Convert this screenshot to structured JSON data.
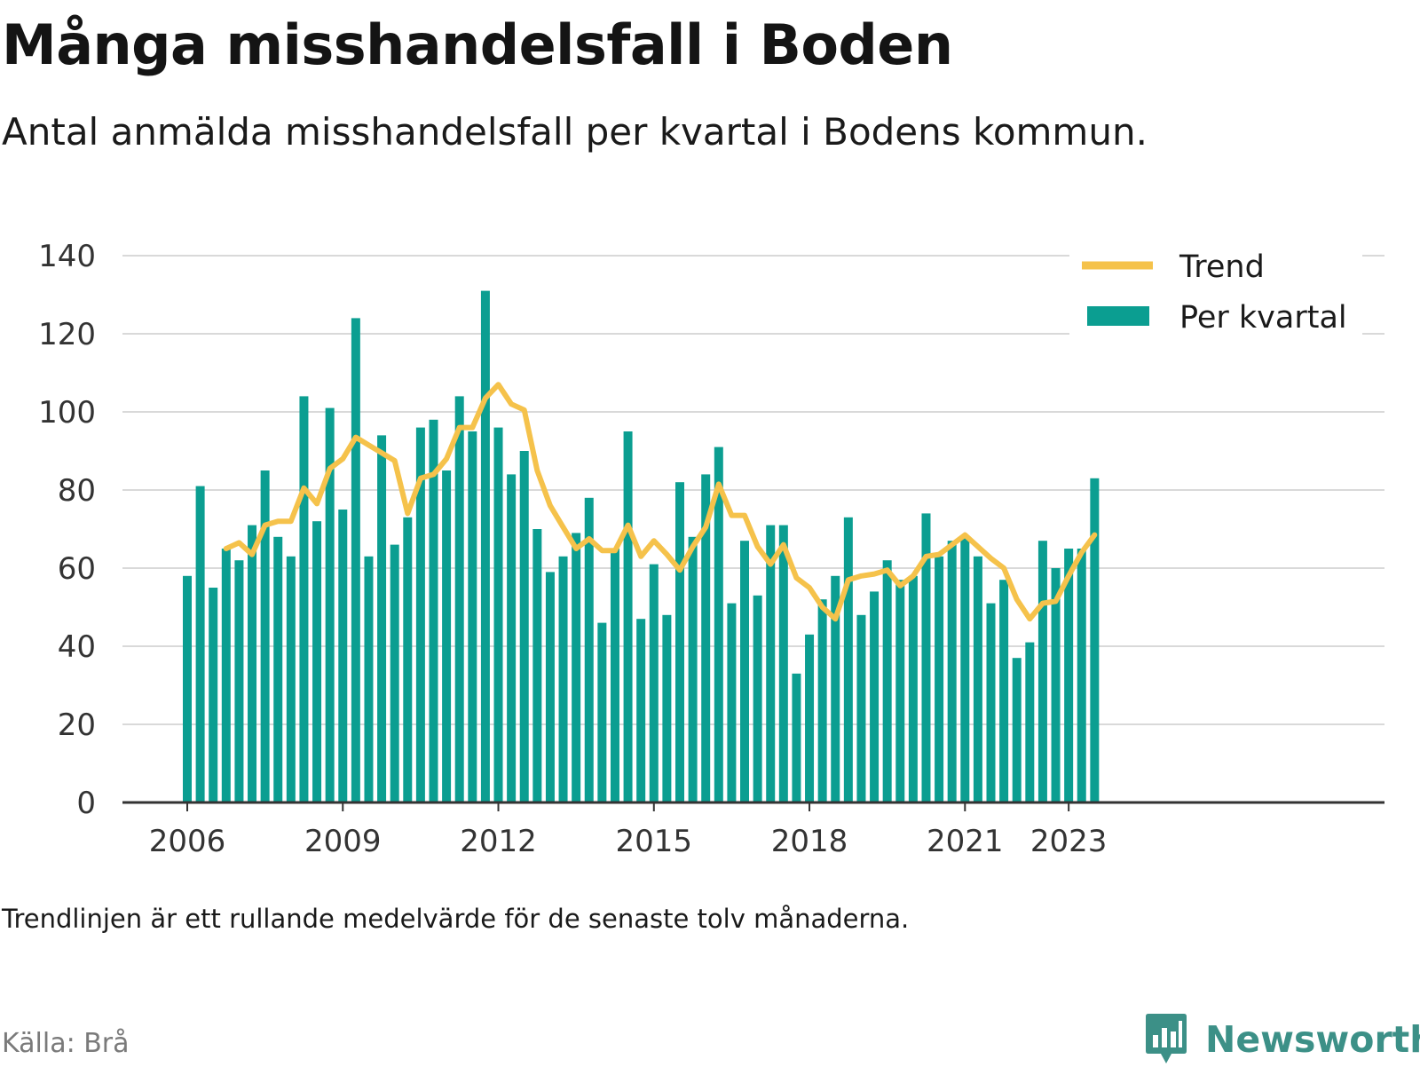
{
  "header": {
    "title": "Många misshandelsfall i Boden",
    "subtitle": "Antal anmälda misshandelsfall per kvartal i Bodens kommun."
  },
  "footer": {
    "note": "Trendlinjen är ett rullande medelvärde för de senaste tolv månaderna.",
    "source": "Källa: Brå",
    "brand": "Newsworthy"
  },
  "colors": {
    "bar": "#0b9e91",
    "trend": "#f5c24b",
    "grid": "#d9d9d9",
    "axis": "#333333",
    "brand": "#3c9087"
  },
  "chart_data": {
    "type": "bar",
    "x_start": "2006 Q1",
    "x_tick_labels": [
      "2006",
      "2009",
      "2012",
      "2015",
      "2018",
      "2021",
      "2023"
    ],
    "ylim": [
      0,
      140
    ],
    "y_ticks": [
      0,
      20,
      40,
      60,
      80,
      100,
      120,
      140
    ],
    "grid": true,
    "legend_position": "top-right",
    "legend": [
      "Trend",
      "Per kvartal"
    ],
    "series": [
      {
        "name": "Per kvartal",
        "type": "bar",
        "values": [
          58,
          81,
          55,
          65,
          62,
          71,
          85,
          68,
          63,
          104,
          72,
          101,
          75,
          124,
          63,
          94,
          66,
          73,
          96,
          98,
          85,
          104,
          95,
          131,
          96,
          84,
          90,
          70,
          59,
          63,
          69,
          78,
          46,
          65,
          95,
          47,
          61,
          48,
          82,
          68,
          84,
          91,
          51,
          67,
          53,
          71,
          71,
          33,
          43,
          52,
          58,
          73,
          48,
          54,
          62,
          57,
          58,
          74,
          63,
          67,
          68,
          63,
          51,
          57,
          37,
          41,
          67,
          60,
          65,
          65,
          83
        ]
      },
      {
        "name": "Trend",
        "type": "line",
        "start_index": 3,
        "values": [
          65,
          66.5,
          63.5,
          71,
          72,
          72,
          80.5,
          76.5,
          85.5,
          88,
          93.5,
          91.5,
          89.5,
          87.5,
          74,
          83,
          84,
          88,
          96,
          96,
          103.5,
          107,
          102,
          100.5,
          85,
          76,
          70.5,
          65,
          67.5,
          64.5,
          64.5,
          71,
          63,
          67,
          63.5,
          59.5,
          65.5,
          70.5,
          81.5,
          73.5,
          73.5,
          65.5,
          61,
          66,
          57.5,
          55,
          50,
          47,
          57,
          58,
          58.5,
          59.5,
          55.5,
          58,
          63,
          63.5,
          66,
          68.5,
          65.5,
          62.5,
          60,
          52,
          47,
          51,
          51.5,
          58,
          64,
          68.5
        ]
      }
    ]
  }
}
